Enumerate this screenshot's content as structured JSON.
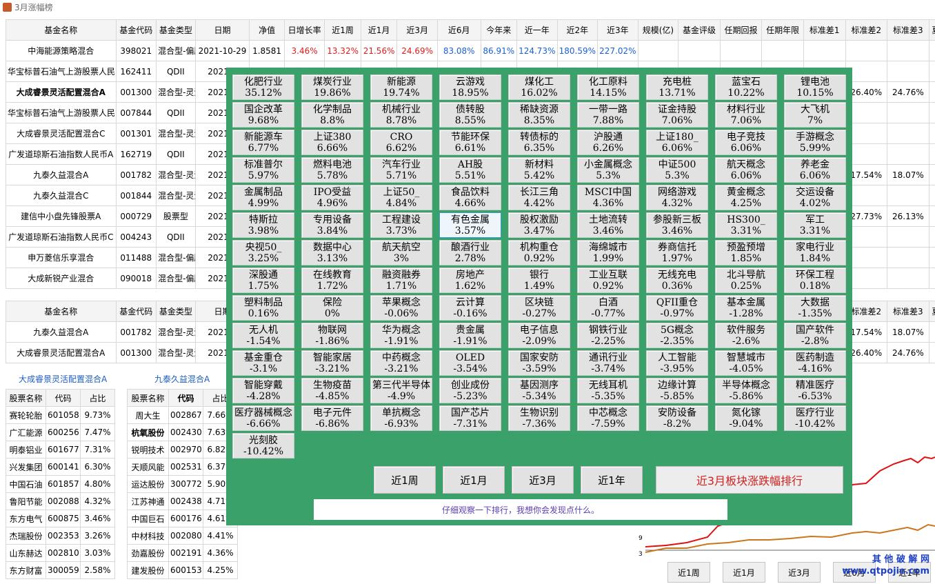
{
  "window": {
    "title": "3月涨幅榜"
  },
  "colors": {
    "panel": "#3aa16a",
    "up": "#e01b1b",
    "down": "#1a5fd6"
  },
  "fund_table": {
    "headers": [
      "基金名称",
      "基金代码",
      "基金类型",
      "日期",
      "净值",
      "日增长率",
      "近1周",
      "近1月",
      "近3月",
      "近6月",
      "今年来",
      "近一年",
      "近2年",
      "近3年",
      "规模(亿)",
      "基金评级",
      "任期回报",
      "任期年限",
      "标准差1",
      "标准差2",
      "标准差3",
      "夏"
    ],
    "rows": [
      {
        "name": "中海能源策略混合",
        "code": "398021",
        "type": "混合型-偏股",
        "date": "2021-10-29",
        "nav": "1.8581",
        "day": "3.46%",
        "w1": "13.32%",
        "m1": "21.56%",
        "m3": "24.69%",
        "m6": "83.08%",
        "ytd": "86.91%",
        "y1": "124.73%",
        "y2": "180.59%",
        "y3": "227.02%",
        "sd2": "",
        "sd3": "",
        "bold": false
      },
      {
        "name": "华宝标普石油气上游股票人民币A",
        "code": "162411",
        "type": "QDII",
        "date": "2021-1",
        "sd2": "",
        "sd3": "",
        "bold": false
      },
      {
        "name": "大成睿景灵活配置混合A",
        "code": "001300",
        "type": "混合型-灵活",
        "date": "2021-1",
        "sd2": "26.40%",
        "sd3": "24.76%",
        "bold": true
      },
      {
        "name": "华宝标普石油气上游股票人民币C",
        "code": "007844",
        "type": "QDII",
        "date": "2021-1",
        "sd2": "",
        "sd3": "",
        "bold": false
      },
      {
        "name": "大成睿景灵活配置混合C",
        "code": "001301",
        "type": "混合型-灵活",
        "date": "2021-1",
        "sd2": "",
        "sd3": "",
        "bold": false
      },
      {
        "name": "广发道琼斯石油指数人民币A",
        "code": "162719",
        "type": "QDII",
        "date": "2021-1",
        "sd2": "",
        "sd3": "",
        "bold": false
      },
      {
        "name": "九泰久益混合A",
        "code": "001782",
        "type": "混合型-灵活",
        "date": "2021-1",
        "sd2": "17.54%",
        "sd3": "18.07%",
        "bold": false
      },
      {
        "name": "九泰久益混合C",
        "code": "001844",
        "type": "混合型-灵活",
        "date": "2021-1",
        "sd2": "",
        "sd3": "",
        "bold": false
      },
      {
        "name": "建信中小盘先锋股票A",
        "code": "000729",
        "type": "股票型",
        "date": "2021-1",
        "sd2": "27.73%",
        "sd3": "26.13%",
        "bold": false
      },
      {
        "name": "广发道琼斯石油指数人民币C",
        "code": "004243",
        "type": "QDII",
        "date": "2021-1",
        "sd2": "",
        "sd3": "",
        "bold": false
      },
      {
        "name": "申万菱信乐享混合",
        "code": "011488",
        "type": "混合型-偏股",
        "date": "2021-1",
        "sd2": "",
        "sd3": "",
        "bold": false
      },
      {
        "name": "大成新锐产业混合",
        "code": "090018",
        "type": "混合型-偏股",
        "date": "2021-1",
        "sd2": "",
        "sd3": "",
        "bold": false
      }
    ]
  },
  "compare_table": {
    "headers": [
      "基金名称",
      "基金代码",
      "基金类型",
      "日期",
      "标准差2",
      "标准差3",
      "夏"
    ],
    "rows": [
      {
        "name": "九泰久益混合A",
        "code": "001782",
        "type": "混合型-灵活",
        "date": "2021-1",
        "sd2": "17.54%",
        "sd3": "18.07%"
      },
      {
        "name": "大成睿景灵活配置混合A",
        "code": "001300",
        "type": "混合型-灵活",
        "date": "2021-1",
        "sd2": "26.40%",
        "sd3": "24.76%"
      }
    ]
  },
  "holdings_left": {
    "label": "大成睿景灵活配置混合A",
    "headers": [
      "股票名称",
      "代码",
      "占比"
    ],
    "rows": [
      [
        "赛轮轮胎",
        "601058",
        "9.73%"
      ],
      [
        "广汇能源",
        "600256",
        "7.47%"
      ],
      [
        "明泰铝业",
        "601677",
        "7.31%"
      ],
      [
        "兴发集团",
        "600141",
        "6.30%"
      ],
      [
        "中国石油",
        "601857",
        "4.80%"
      ],
      [
        "鲁阳节能",
        "002088",
        "4.32%"
      ],
      [
        "东方电气",
        "600875",
        "3.46%"
      ],
      [
        "杰瑞股份",
        "002353",
        "3.26%"
      ],
      [
        "山东赫达",
        "002810",
        "3.03%"
      ],
      [
        "东方财富",
        "300059",
        "2.58%"
      ]
    ]
  },
  "holdings_right": {
    "label": "九泰久益混合A",
    "headers": [
      "股票名称",
      "代码",
      "占比"
    ],
    "rows": [
      [
        "周大生",
        "002867",
        "7.66%"
      ],
      [
        "杭氧股份",
        "002430",
        "7.63%"
      ],
      [
        "锐明技术",
        "002970",
        "6.82%"
      ],
      [
        "天顺风能",
        "002531",
        "6.37%"
      ],
      [
        "运达股份",
        "300772",
        "5.90%"
      ],
      [
        "江苏神通",
        "002438",
        "4.71%"
      ],
      [
        "中国巨石",
        "600176",
        "4.61%"
      ],
      [
        "中材科技",
        "002080",
        "4.41%"
      ],
      [
        "劲嘉股份",
        "002191",
        "4.36%"
      ],
      [
        "建发股份",
        "600153",
        "4.25%"
      ]
    ]
  },
  "sectors": [
    [
      "化肥行业",
      "35.12%"
    ],
    [
      "煤炭行业",
      "19.86%"
    ],
    [
      "新能源",
      "19.74%"
    ],
    [
      "云游戏",
      "18.95%"
    ],
    [
      "煤化工",
      "16.02%"
    ],
    [
      "化工原料",
      "14.15%"
    ],
    [
      "充电桩",
      "13.71%"
    ],
    [
      "蓝宝石",
      "10.22%"
    ],
    [
      "锂电池",
      "10.15%"
    ],
    [
      "国企改革",
      "9.68%"
    ],
    [
      "化学制品",
      "8.8%"
    ],
    [
      "机械行业",
      "8.78%"
    ],
    [
      "债转股",
      "8.55%"
    ],
    [
      "稀缺资源",
      "8.35%"
    ],
    [
      "一带一路",
      "7.88%"
    ],
    [
      "证金持股",
      "7.06%"
    ],
    [
      "材料行业",
      "7.06%"
    ],
    [
      "大飞机",
      "7%"
    ],
    [
      "新能源车",
      "6.77%"
    ],
    [
      "上证380",
      "6.66%"
    ],
    [
      "CRO",
      "6.62%"
    ],
    [
      "节能环保",
      "6.61%"
    ],
    [
      "转债标的",
      "6.35%"
    ],
    [
      "沪股通",
      "6.26%"
    ],
    [
      "上证180_",
      "6.06%"
    ],
    [
      "电子竞技",
      "6.06%"
    ],
    [
      "手游概念",
      "5.99%"
    ],
    [
      "标准普尔",
      "5.97%"
    ],
    [
      "燃料电池",
      "5.78%"
    ],
    [
      "汽车行业",
      "5.71%"
    ],
    [
      "AH股",
      "5.51%"
    ],
    [
      "新材料",
      "5.42%"
    ],
    [
      "小金属概念",
      "5.3%"
    ],
    [
      "中证500",
      "5.3%"
    ],
    [
      "航天概念",
      "6.06%"
    ],
    [
      "养老金",
      "6.06%"
    ],
    [
      "金属制品",
      "4.99%"
    ],
    [
      "IPO受益",
      "4.96%"
    ],
    [
      "上证50_",
      "4.84%"
    ],
    [
      "食品饮料",
      "4.66%"
    ],
    [
      "长江三角",
      "4.42%"
    ],
    [
      "MSCI中国",
      "4.36%"
    ],
    [
      "网络游戏",
      "4.32%"
    ],
    [
      "黄金概念",
      "4.25%"
    ],
    [
      "交运设备",
      "4.02%"
    ],
    [
      "特斯拉",
      "3.98%"
    ],
    [
      "专用设备",
      "3.84%"
    ],
    [
      "工程建设",
      "3.73%"
    ],
    [
      "有色金属",
      "3.57%"
    ],
    [
      "股权激励",
      "3.47%"
    ],
    [
      "土地流转",
      "3.46%"
    ],
    [
      "参股新三板",
      "3.46%"
    ],
    [
      "HS300_",
      "3.31%"
    ],
    [
      "军工",
      "3.31%"
    ],
    [
      "央视50_",
      "3.25%"
    ],
    [
      "数据中心",
      "3.13%"
    ],
    [
      "航天航空",
      "3%"
    ],
    [
      "酿酒行业",
      "2.78%"
    ],
    [
      "机构重仓",
      "0.92%"
    ],
    [
      "海绵城市",
      "1.99%"
    ],
    [
      "券商信托",
      "1.97%"
    ],
    [
      "预盈预增",
      "1.85%"
    ],
    [
      "家电行业",
      "1.84%"
    ],
    [
      "深股通",
      "1.75%"
    ],
    [
      "在线教育",
      "1.72%"
    ],
    [
      "融资融券",
      "1.71%"
    ],
    [
      "房地产",
      "1.62%"
    ],
    [
      "银行",
      "1.49%"
    ],
    [
      "工业互联",
      "0.92%"
    ],
    [
      "无线充电",
      "0.36%"
    ],
    [
      "北斗导航",
      "0.25%"
    ],
    [
      "环保工程",
      "0.18%"
    ],
    [
      "塑料制品",
      "0.16%"
    ],
    [
      "保险",
      "0%"
    ],
    [
      "苹果概念",
      "-0.06%"
    ],
    [
      "云计算",
      "-0.16%"
    ],
    [
      "区块链",
      "-0.27%"
    ],
    [
      "白酒",
      "-0.77%"
    ],
    [
      "QFII重仓",
      "-0.97%"
    ],
    [
      "基本金属",
      "-1.28%"
    ],
    [
      "大数据",
      "-1.35%"
    ],
    [
      "无人机",
      "-1.54%"
    ],
    [
      "物联网",
      "-1.86%"
    ],
    [
      "华为概念",
      "-1.91%"
    ],
    [
      "贵金属",
      "-1.91%"
    ],
    [
      "电子信息",
      "-2.09%"
    ],
    [
      "钢铁行业",
      "-2.25%"
    ],
    [
      "5G概念",
      "-2.35%"
    ],
    [
      "软件服务",
      "-2.6%"
    ],
    [
      "国产软件",
      "-2.8%"
    ],
    [
      "基金重仓",
      "-3.1%"
    ],
    [
      "智能家居",
      "-3.21%"
    ],
    [
      "中药概念",
      "-3.21%"
    ],
    [
      "OLED",
      "-3.54%"
    ],
    [
      "国家安防",
      "-3.59%"
    ],
    [
      "通讯行业",
      "-3.74%"
    ],
    [
      "人工智能",
      "-3.95%"
    ],
    [
      "智慧城市",
      "-4.05%"
    ],
    [
      "医药制造",
      "-4.16%"
    ],
    [
      "智能穿戴",
      "-4.28%"
    ],
    [
      "生物疫苗",
      "-4.85%"
    ],
    [
      "第三代半导体",
      "-4.9%"
    ],
    [
      "创业成份",
      "-5.23%"
    ],
    [
      "基因测序",
      "-5.34%"
    ],
    [
      "无线耳机",
      "-5.35%"
    ],
    [
      "边缘计算",
      "-5.85%"
    ],
    [
      "半导体概念",
      "-5.86%"
    ],
    [
      "精准医疗",
      "-6.53%"
    ],
    [
      "医疗器械概念",
      "-6.66%"
    ],
    [
      "电子元件",
      "-6.86%"
    ],
    [
      "单抗概念",
      "-6.93%"
    ],
    [
      "国产芯片",
      "-7.31%"
    ],
    [
      "生物识别",
      "-7.36%"
    ],
    [
      "中芯概念",
      "-7.59%"
    ],
    [
      "安防设备",
      "-8.2%"
    ],
    [
      "氮化镓",
      "-9.04%"
    ],
    [
      "医疗行业",
      "-10.42%"
    ],
    [
      "光刻胶",
      "-10.42%"
    ]
  ],
  "panel_buttons": [
    "近1周",
    "近1月",
    "近3月",
    "近1年"
  ],
  "rank_button": "近3月板块涨跌幅排行",
  "hint": "仔细观察一下排行，我想你会发现点什么。",
  "bottom_buttons": [
    "近1周",
    "近1月",
    "近3月",
    "近6月",
    "近1年"
  ],
  "chart_labels": {
    "y9": "9",
    "y3": "3"
  },
  "watermark": {
    "line1": "其 他 破 解 网",
    "line2": "www.qtpojie.com"
  }
}
